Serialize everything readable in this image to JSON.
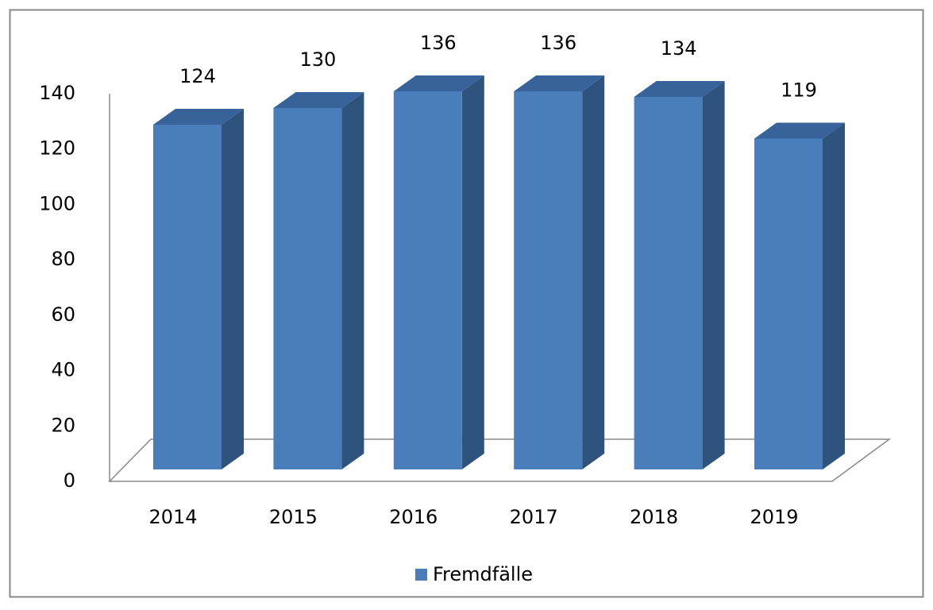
{
  "chart_data": {
    "type": "bar3d",
    "categories": [
      "2014",
      "2015",
      "2016",
      "2017",
      "2018",
      "2019"
    ],
    "series": [
      {
        "name": "Fremdfälle",
        "color": "#4a7ebb",
        "values": [
          124,
          130,
          136,
          136,
          134,
          119
        ]
      }
    ],
    "ylim": [
      0,
      140
    ],
    "yticks": [
      0,
      20,
      40,
      60,
      80,
      100,
      120,
      140
    ],
    "legend": "bottom"
  }
}
